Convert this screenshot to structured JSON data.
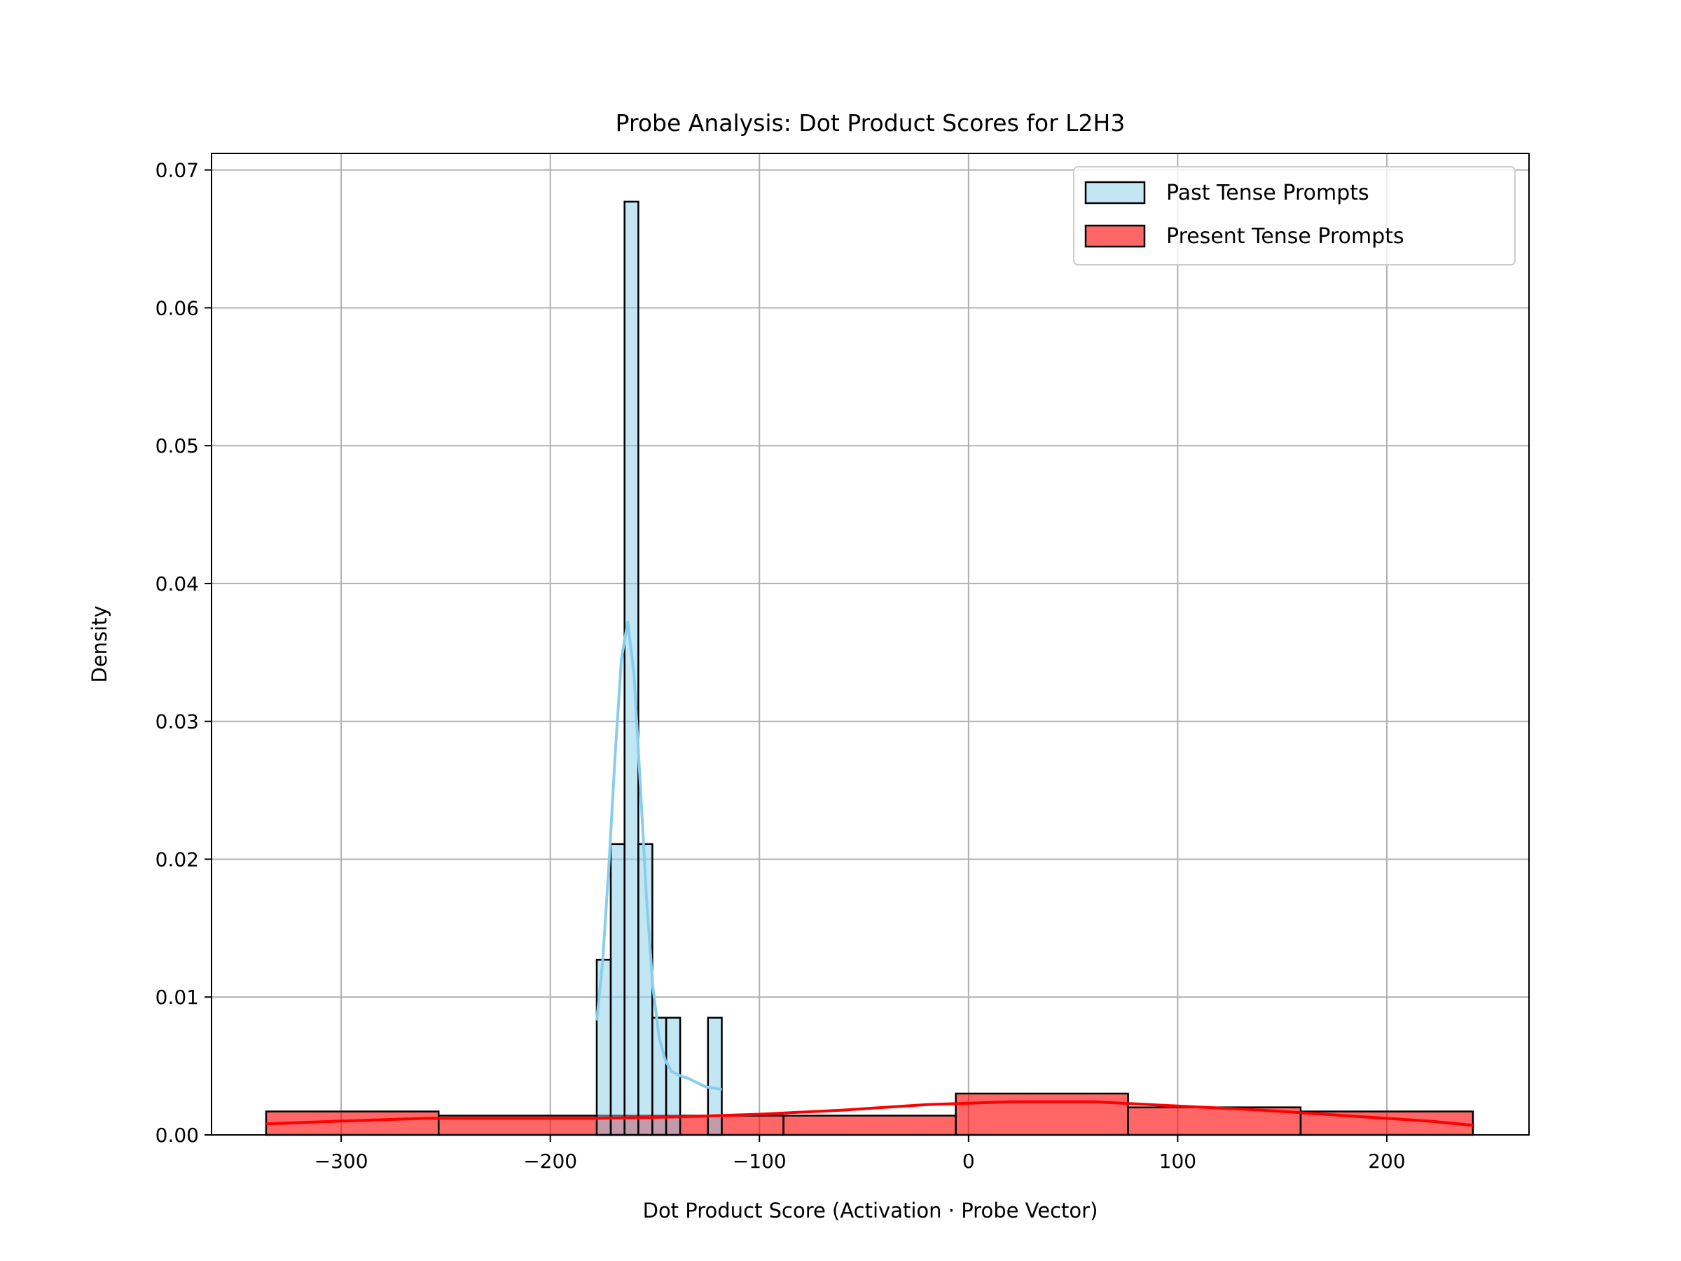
{
  "chart_data": {
    "type": "histogram",
    "title": "Probe Analysis: Dot Product Scores for L2H3",
    "xlabel": "Dot Product Score (Activation · Probe Vector)",
    "ylabel": "Density",
    "xlim": [
      -362,
      268
    ],
    "ylim": [
      0,
      0.0712
    ],
    "xticks": [
      {
        "value": -300,
        "label": "−300"
      },
      {
        "value": -200,
        "label": "−200"
      },
      {
        "value": -100,
        "label": "−100"
      },
      {
        "value": 0,
        "label": "0"
      },
      {
        "value": 100,
        "label": "100"
      },
      {
        "value": 200,
        "label": "200"
      }
    ],
    "yticks": [
      {
        "value": 0.0,
        "label": "0.00"
      },
      {
        "value": 0.01,
        "label": "0.01"
      },
      {
        "value": 0.02,
        "label": "0.02"
      },
      {
        "value": 0.03,
        "label": "0.03"
      },
      {
        "value": 0.04,
        "label": "0.04"
      },
      {
        "value": 0.05,
        "label": "0.05"
      },
      {
        "value": 0.06,
        "label": "0.06"
      },
      {
        "value": 0.07,
        "label": "0.07"
      }
    ],
    "grid": true,
    "legend_position": "top-right",
    "series": [
      {
        "name": "Past Tense Prompts",
        "fill": "#87ceeb",
        "line_color": "#87ceeb",
        "bins": [
          {
            "x0": -177.8,
            "x1": -171.1,
            "density": 0.0127
          },
          {
            "x0": -171.1,
            "x1": -164.5,
            "density": 0.0211
          },
          {
            "x0": -164.5,
            "x1": -157.9,
            "density": 0.0677
          },
          {
            "x0": -157.9,
            "x1": -151.2,
            "density": 0.0211
          },
          {
            "x0": -151.2,
            "x1": -144.6,
            "density": 0.0085
          },
          {
            "x0": -144.6,
            "x1": -137.9,
            "density": 0.0085
          },
          {
            "x0": -137.9,
            "x1": -131.3,
            "density": 0.0
          },
          {
            "x0": -131.3,
            "x1": -124.6,
            "density": 0.0
          },
          {
            "x0": -124.6,
            "x1": -118.0,
            "density": 0.0085
          }
        ],
        "kde": [
          [
            -177.8,
            0.0083
          ],
          [
            -175,
            0.0125
          ],
          [
            -172,
            0.0195
          ],
          [
            -169,
            0.0275
          ],
          [
            -166,
            0.0345
          ],
          [
            -163,
            0.0372
          ],
          [
            -160,
            0.0335
          ],
          [
            -157,
            0.0255
          ],
          [
            -154,
            0.0172
          ],
          [
            -151,
            0.0108
          ],
          [
            -148,
            0.0071
          ],
          [
            -145,
            0.0054
          ],
          [
            -142,
            0.0046
          ],
          [
            -138,
            0.0043
          ],
          [
            -134,
            0.0041
          ],
          [
            -130,
            0.0038
          ],
          [
            -126,
            0.0035
          ],
          [
            -118,
            0.0033
          ]
        ]
      },
      {
        "name": "Present Tense Prompts",
        "fill": "#ff0000",
        "line_color": "#ff0000",
        "bins": [
          {
            "x0": -335.9,
            "x1": -253.4,
            "density": 0.0017
          },
          {
            "x0": -253.4,
            "x1": -171.0,
            "density": 0.0014
          },
          {
            "x0": -171.0,
            "x1": -88.5,
            "density": 0.0014
          },
          {
            "x0": -88.5,
            "x1": -6.1,
            "density": 0.0014
          },
          {
            "x0": -6.1,
            "x1": 76.3,
            "density": 0.003
          },
          {
            "x0": 76.3,
            "x1": 158.8,
            "density": 0.002
          },
          {
            "x0": 158.8,
            "x1": 241.2,
            "density": 0.0017
          }
        ],
        "kde": [
          [
            -335.9,
            0.0008
          ],
          [
            -300,
            0.001
          ],
          [
            -260,
            0.0012
          ],
          [
            -220,
            0.0012
          ],
          [
            -180,
            0.0012
          ],
          [
            -140,
            0.0013
          ],
          [
            -100,
            0.0015
          ],
          [
            -60,
            0.0018
          ],
          [
            -20,
            0.0022
          ],
          [
            20,
            0.0024
          ],
          [
            60,
            0.0024
          ],
          [
            100,
            0.0021
          ],
          [
            140,
            0.0018
          ],
          [
            180,
            0.0014
          ],
          [
            220,
            0.001
          ],
          [
            241.2,
            0.0007
          ]
        ]
      }
    ]
  }
}
